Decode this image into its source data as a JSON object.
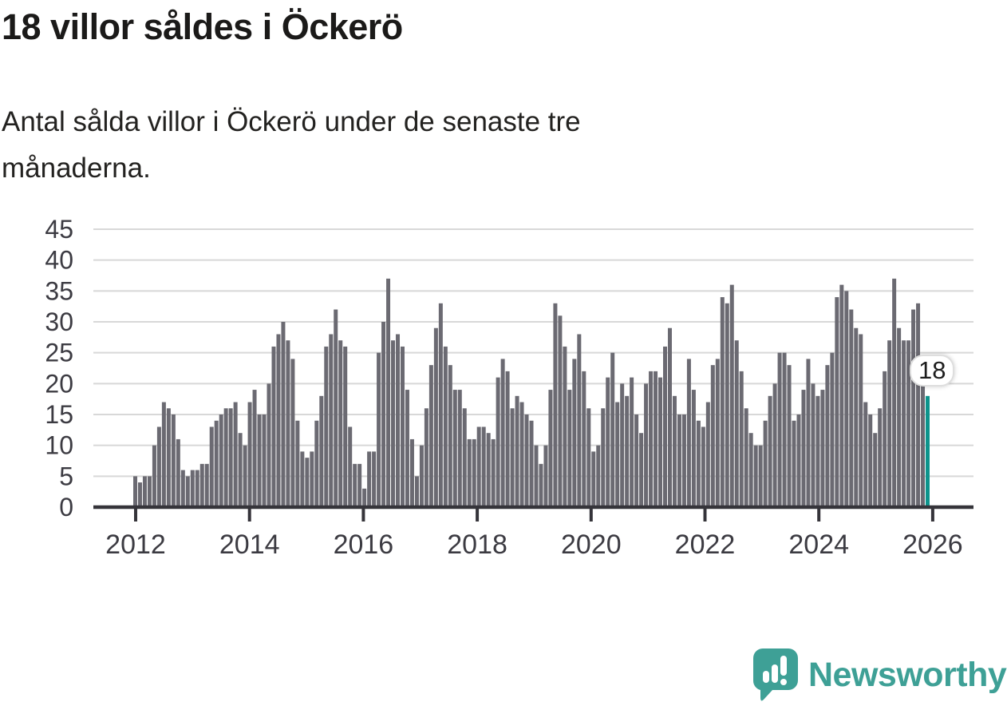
{
  "header": {
    "title": "18 villor såldes i Öckerö",
    "subtitle": "Antal sålda villor i Öckerö under de senaste tre månaderna.",
    "subtitle_line1": "Antal sålda villor i Öckerö under de senaste tre",
    "subtitle_line2": "månaderna."
  },
  "chart_data": {
    "type": "bar",
    "title": "18 villor såldes i Öckerö",
    "xlabel": "",
    "ylabel": "",
    "x_range": {
      "start": "2012-01",
      "end": "2025-11",
      "interval": "monthly"
    },
    "values": [
      5,
      4,
      5,
      5,
      10,
      13,
      17,
      16,
      15,
      11,
      6,
      5,
      6,
      6,
      7,
      7,
      13,
      14,
      15,
      16,
      16,
      17,
      12,
      10,
      17,
      19,
      15,
      15,
      20,
      26,
      28,
      30,
      27,
      24,
      14,
      9,
      8,
      9,
      14,
      18,
      26,
      28,
      32,
      27,
      26,
      13,
      7,
      7,
      3,
      9,
      9,
      25,
      30,
      37,
      27,
      28,
      26,
      19,
      11,
      5,
      10,
      16,
      23,
      29,
      33,
      26,
      23,
      19,
      19,
      16,
      11,
      11,
      13,
      13,
      12,
      11,
      21,
      24,
      22,
      16,
      18,
      17,
      15,
      14,
      10,
      7,
      10,
      19,
      33,
      31,
      26,
      19,
      24,
      28,
      22,
      16,
      9,
      10,
      16,
      21,
      25,
      17,
      20,
      18,
      21,
      15,
      12,
      20,
      22,
      22,
      21,
      26,
      29,
      18,
      15,
      15,
      24,
      19,
      14,
      13,
      17,
      23,
      24,
      34,
      33,
      36,
      27,
      22,
      16,
      12,
      10,
      10,
      14,
      18,
      20,
      25,
      25,
      23,
      14,
      15,
      19,
      24,
      20,
      18,
      19,
      23,
      25,
      34,
      36,
      35,
      32,
      29,
      28,
      17,
      15,
      12,
      16,
      22,
      27,
      37,
      29,
      27,
      27,
      32,
      33,
      20,
      18
    ],
    "ylim": [
      0,
      45
    ],
    "y_ticks": [
      0,
      5,
      10,
      15,
      20,
      25,
      30,
      35,
      40,
      45
    ],
    "x_ticks": [
      2012,
      2014,
      2016,
      2018,
      2020,
      2022,
      2024,
      2026
    ],
    "grid": "horizontal",
    "legend": "none",
    "annotation": {
      "label": "18",
      "value": 18,
      "month": "2025-11"
    },
    "colors": {
      "bar": "#6B6A72",
      "accent": "#0D948C",
      "grid": "#D8D8D8",
      "axis": "#35343A",
      "tick_label": "#3C3B42"
    }
  },
  "branding": {
    "logo_text": "Newsworthy",
    "logo_color": "#3EA096"
  }
}
